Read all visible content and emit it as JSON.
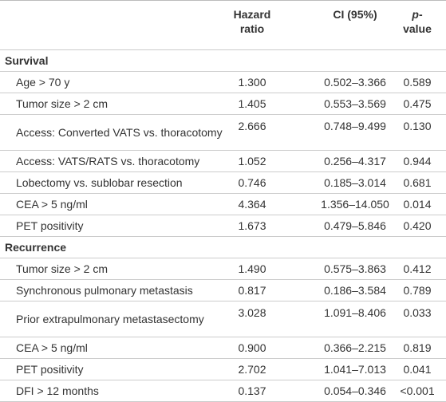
{
  "header": {
    "hazard_ratio": "Hazard ratio",
    "ci": "CI (95%)",
    "p_italic": "p",
    "p_rest": "-value"
  },
  "sections": [
    {
      "title": "Survival",
      "rows": [
        [
          "Age > 70 y",
          "1.300",
          "0.502–3.366",
          "0.589"
        ],
        [
          "Tumor size > 2 cm",
          "1.405",
          "0.553–3.569",
          "0.475"
        ],
        [
          "Access: Converted VATS vs. thoracotomy",
          "2.666",
          "0.748–9.499",
          "0.130"
        ],
        [
          "Access: VATS/RATS vs. thoracotomy",
          "1.052",
          "0.256–4.317",
          "0.944"
        ],
        [
          "Lobectomy vs. sublobar resection",
          "0.746",
          "0.185–3.014",
          "0.681"
        ],
        [
          "CEA > 5 ng/ml",
          "4.364",
          "1.356–14.050",
          "0.014"
        ],
        [
          "PET positivity",
          "1.673",
          "0.479–5.846",
          "0.420"
        ]
      ]
    },
    {
      "title": "Recurrence",
      "rows": [
        [
          "Tumor size > 2 cm",
          "1.490",
          "0.575–3.863",
          "0.412"
        ],
        [
          "Synchronous pulmonary metastasis",
          "0.817",
          "0.186–3.584",
          "0.789"
        ],
        [
          "Prior extrapulmonary metastasectomy",
          "3.028",
          "1.091–8.406",
          "0.033"
        ],
        [
          "CEA > 5 ng/ml",
          "0.900",
          "0.366–2.215",
          "0.819"
        ],
        [
          "PET positivity",
          "2.702",
          "1.041–7.013",
          "0.041"
        ],
        [
          "DFI > 12 months",
          "0.137",
          "0.054–0.346",
          "<0.001"
        ]
      ]
    }
  ]
}
